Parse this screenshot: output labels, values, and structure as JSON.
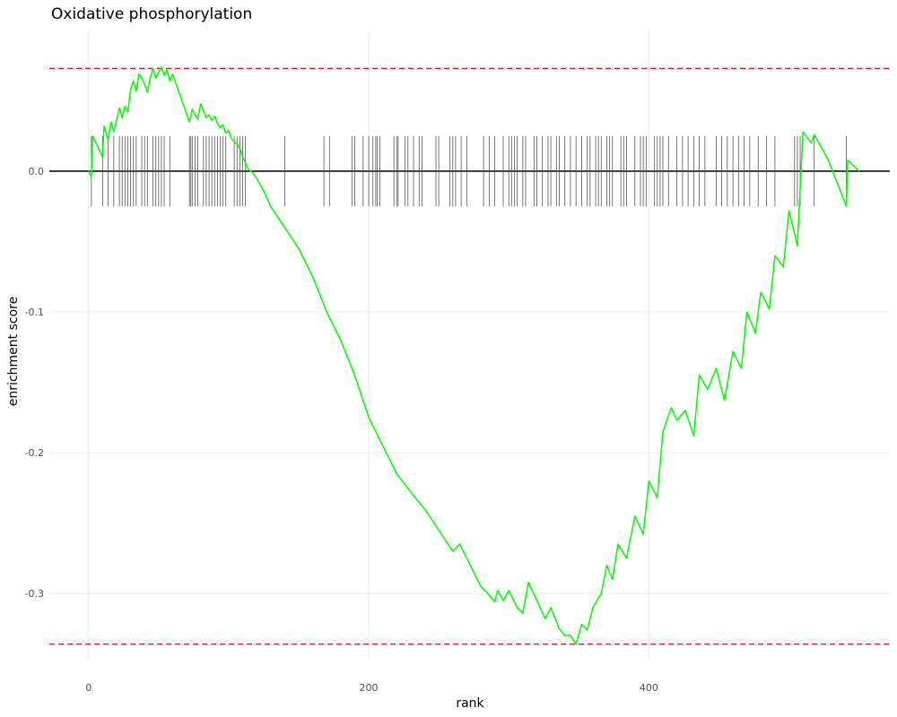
{
  "chart_data": {
    "type": "line",
    "title": "Oxidative phosphorylation",
    "xlabel": "rank",
    "ylabel": "enrichment score",
    "xlim": [
      -28,
      572
    ],
    "ylim": [
      -0.347,
      0.1
    ],
    "x_ticks": [
      0,
      200,
      400
    ],
    "x_tick_labels": [
      "0",
      "200",
      "400"
    ],
    "y_ticks": [
      0.0,
      -0.1,
      -0.2,
      -0.3
    ],
    "y_tick_labels": [
      "0.0",
      "-0.1",
      "-0.2",
      "-0.3"
    ],
    "grid": true,
    "legend": "none",
    "colors": {
      "running_score": "#00ff00",
      "limit_lines": "#ff0000",
      "zero_line": "#000000",
      "hit_ticks": "#555555",
      "grid": "#ebebeb",
      "tick_text": "#4d4d4d"
    },
    "max_score_line": 0.073,
    "min_score_line": -0.336,
    "baseline": 0.0,
    "hit_tick_range": [
      -0.025,
      0.025
    ],
    "hits": [
      2,
      10,
      14,
      18,
      22,
      24,
      26,
      28,
      30,
      32,
      34,
      38,
      40,
      42,
      46,
      48,
      50,
      52,
      54,
      58,
      72,
      73,
      74,
      76,
      78,
      82,
      84,
      86,
      88,
      90,
      92,
      94,
      96,
      98,
      104,
      106,
      108,
      110,
      112,
      140,
      168,
      172,
      188,
      190,
      196,
      200,
      203,
      205,
      206,
      208,
      218,
      220,
      221,
      226,
      228,
      232,
      236,
      238,
      248,
      250,
      258,
      260,
      262,
      266,
      270,
      282,
      286,
      290,
      296,
      300,
      302,
      304,
      306,
      310,
      312,
      318,
      320,
      324,
      328,
      330,
      334,
      336,
      340,
      344,
      348,
      352,
      356,
      358,
      362,
      364,
      366,
      370,
      372,
      374,
      380,
      382,
      384,
      390,
      394,
      396,
      398,
      404,
      406,
      408,
      410,
      414,
      420,
      424,
      428,
      432,
      436,
      440,
      448,
      452,
      456,
      460,
      464,
      468,
      472,
      478,
      484,
      490,
      504,
      506,
      508,
      518,
      541
    ],
    "series": [
      {
        "points": [
          [
            0,
            0.0
          ],
          [
            2,
            -0.004
          ],
          [
            3,
            0.025
          ],
          [
            10,
            0.01
          ],
          [
            11,
            0.032
          ],
          [
            14,
            0.022
          ],
          [
            16,
            0.035
          ],
          [
            18,
            0.028
          ],
          [
            22,
            0.045
          ],
          [
            24,
            0.038
          ],
          [
            26,
            0.046
          ],
          [
            28,
            0.042
          ],
          [
            30,
            0.058
          ],
          [
            32,
            0.064
          ],
          [
            34,
            0.057
          ],
          [
            36,
            0.069
          ],
          [
            38,
            0.066
          ],
          [
            40,
            0.062
          ],
          [
            42,
            0.056
          ],
          [
            44,
            0.066
          ],
          [
            46,
            0.073
          ],
          [
            48,
            0.066
          ],
          [
            50,
            0.07
          ],
          [
            52,
            0.074
          ],
          [
            54,
            0.068
          ],
          [
            56,
            0.072
          ],
          [
            58,
            0.064
          ],
          [
            60,
            0.069
          ],
          [
            72,
            0.035
          ],
          [
            74,
            0.044
          ],
          [
            76,
            0.04
          ],
          [
            78,
            0.037
          ],
          [
            80,
            0.048
          ],
          [
            82,
            0.043
          ],
          [
            84,
            0.038
          ],
          [
            86,
            0.04
          ],
          [
            88,
            0.036
          ],
          [
            90,
            0.039
          ],
          [
            92,
            0.034
          ],
          [
            94,
            0.031
          ],
          [
            96,
            0.033
          ],
          [
            98,
            0.027
          ],
          [
            100,
            0.029
          ],
          [
            102,
            0.023
          ],
          [
            104,
            0.021
          ],
          [
            106,
            0.019
          ],
          [
            108,
            0.016
          ],
          [
            110,
            0.01
          ],
          [
            112,
            0.006
          ],
          [
            114,
            0.001
          ],
          [
            116,
            0.0
          ],
          [
            118,
            -0.002
          ],
          [
            120,
            -0.005
          ],
          [
            125,
            -0.014
          ],
          [
            130,
            -0.025
          ],
          [
            140,
            -0.04
          ],
          [
            150,
            -0.055
          ],
          [
            160,
            -0.075
          ],
          [
            170,
            -0.1
          ],
          [
            180,
            -0.12
          ],
          [
            190,
            -0.145
          ],
          [
            200,
            -0.175
          ],
          [
            210,
            -0.195
          ],
          [
            220,
            -0.215
          ],
          [
            230,
            -0.228
          ],
          [
            240,
            -0.24
          ],
          [
            250,
            -0.255
          ],
          [
            260,
            -0.27
          ],
          [
            265,
            -0.265
          ],
          [
            270,
            -0.275
          ],
          [
            280,
            -0.295
          ],
          [
            285,
            -0.3
          ],
          [
            290,
            -0.306
          ],
          [
            292,
            -0.298
          ],
          [
            296,
            -0.305
          ],
          [
            300,
            -0.298
          ],
          [
            306,
            -0.31
          ],
          [
            310,
            -0.314
          ],
          [
            314,
            -0.292
          ],
          [
            320,
            -0.305
          ],
          [
            326,
            -0.318
          ],
          [
            330,
            -0.31
          ],
          [
            336,
            -0.325
          ],
          [
            340,
            -0.33
          ],
          [
            344,
            -0.33
          ],
          [
            348,
            -0.336
          ],
          [
            352,
            -0.322
          ],
          [
            356,
            -0.326
          ],
          [
            360,
            -0.31
          ],
          [
            366,
            -0.3
          ],
          [
            370,
            -0.28
          ],
          [
            374,
            -0.29
          ],
          [
            378,
            -0.265
          ],
          [
            384,
            -0.275
          ],
          [
            390,
            -0.245
          ],
          [
            396,
            -0.258
          ],
          [
            400,
            -0.22
          ],
          [
            406,
            -0.232
          ],
          [
            410,
            -0.185
          ],
          [
            416,
            -0.168
          ],
          [
            420,
            -0.177
          ],
          [
            426,
            -0.17
          ],
          [
            432,
            -0.188
          ],
          [
            436,
            -0.145
          ],
          [
            442,
            -0.155
          ],
          [
            448,
            -0.14
          ],
          [
            454,
            -0.163
          ],
          [
            460,
            -0.128
          ],
          [
            466,
            -0.14
          ],
          [
            470,
            -0.1
          ],
          [
            476,
            -0.115
          ],
          [
            480,
            -0.086
          ],
          [
            486,
            -0.098
          ],
          [
            490,
            -0.06
          ],
          [
            496,
            -0.068
          ],
          [
            500,
            -0.028
          ],
          [
            506,
            -0.053
          ],
          [
            510,
            0.028
          ],
          [
            516,
            0.02
          ],
          [
            518,
            0.026
          ],
          [
            528,
            0.008
          ],
          [
            541,
            -0.025
          ],
          [
            542,
            0.008
          ],
          [
            550,
            0.0
          ]
        ]
      }
    ]
  }
}
